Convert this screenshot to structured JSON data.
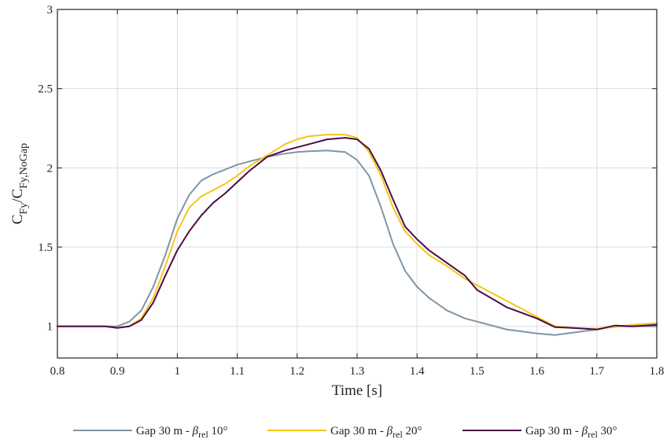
{
  "chart_data": {
    "type": "line",
    "xlabel": "Time [s]",
    "ylabel": {
      "main": "C",
      "sub1": "Fy",
      "sep": "/C",
      "sub2": "Fy,NoGap"
    },
    "xlim": [
      0.8,
      1.8
    ],
    "ylim": [
      0.8,
      3
    ],
    "xticks": [
      "0.8",
      "0.9",
      "1",
      "1.1",
      "1.2",
      "1.3",
      "1.4",
      "1.5",
      "1.6",
      "1.7",
      "1.8"
    ],
    "yticks": [
      "1",
      "1.5",
      "2",
      "2.5",
      "3"
    ],
    "grid": true,
    "legend_position": "bottom",
    "series": [
      {
        "legend": {
          "prefix": "Gap 30 m - ",
          "symbol": "β",
          "sub": "rel",
          "suffix": " 10°"
        },
        "color": "#7f95a6",
        "x": [
          0.8,
          0.84,
          0.88,
          0.9,
          0.92,
          0.94,
          0.96,
          0.98,
          1.0,
          1.02,
          1.04,
          1.06,
          1.08,
          1.1,
          1.12,
          1.15,
          1.18,
          1.2,
          1.22,
          1.25,
          1.28,
          1.3,
          1.32,
          1.34,
          1.36,
          1.38,
          1.4,
          1.42,
          1.45,
          1.48,
          1.5,
          1.55,
          1.6,
          1.63,
          1.66,
          1.7,
          1.73,
          1.76,
          1.8
        ],
        "y": [
          1.0,
          1.0,
          1.0,
          1.0,
          1.03,
          1.1,
          1.25,
          1.45,
          1.68,
          1.83,
          1.92,
          1.96,
          1.99,
          2.02,
          2.04,
          2.07,
          2.09,
          2.1,
          2.105,
          2.11,
          2.1,
          2.05,
          1.95,
          1.75,
          1.52,
          1.35,
          1.25,
          1.18,
          1.1,
          1.05,
          1.03,
          0.98,
          0.955,
          0.945,
          0.96,
          0.98,
          1.0,
          1.0,
          1.0
        ]
      },
      {
        "legend": {
          "prefix": "Gap 30 m - ",
          "symbol": "β",
          "sub": "rel",
          "suffix": " 20°"
        },
        "color": "#f5c518",
        "x": [
          0.8,
          0.84,
          0.88,
          0.9,
          0.92,
          0.94,
          0.96,
          0.98,
          1.0,
          1.02,
          1.04,
          1.06,
          1.08,
          1.1,
          1.12,
          1.15,
          1.18,
          1.2,
          1.22,
          1.25,
          1.28,
          1.3,
          1.32,
          1.34,
          1.36,
          1.38,
          1.4,
          1.42,
          1.45,
          1.48,
          1.5,
          1.55,
          1.6,
          1.63,
          1.66,
          1.7,
          1.73,
          1.76,
          1.8
        ],
        "y": [
          1.0,
          1.0,
          1.0,
          0.99,
          1.0,
          1.05,
          1.18,
          1.38,
          1.6,
          1.75,
          1.82,
          1.86,
          1.9,
          1.95,
          2.01,
          2.08,
          2.15,
          2.18,
          2.2,
          2.21,
          2.21,
          2.19,
          2.1,
          1.95,
          1.75,
          1.6,
          1.52,
          1.45,
          1.38,
          1.3,
          1.26,
          1.16,
          1.06,
          1.0,
          0.99,
          0.985,
          0.995,
          1.01,
          1.02
        ]
      },
      {
        "legend": {
          "prefix": "Gap 30 m - ",
          "symbol": "β",
          "sub": "rel",
          "suffix": " 30°"
        },
        "color": "#4b0d48",
        "x": [
          0.8,
          0.84,
          0.88,
          0.9,
          0.92,
          0.94,
          0.96,
          0.98,
          1.0,
          1.02,
          1.04,
          1.06,
          1.08,
          1.1,
          1.12,
          1.15,
          1.18,
          1.2,
          1.22,
          1.25,
          1.28,
          1.3,
          1.32,
          1.34,
          1.36,
          1.38,
          1.4,
          1.42,
          1.45,
          1.48,
          1.5,
          1.55,
          1.6,
          1.63,
          1.66,
          1.7,
          1.73,
          1.76,
          1.8
        ],
        "y": [
          1.0,
          1.0,
          1.0,
          0.99,
          1.0,
          1.04,
          1.15,
          1.32,
          1.48,
          1.6,
          1.7,
          1.78,
          1.84,
          1.91,
          1.98,
          2.07,
          2.11,
          2.13,
          2.15,
          2.18,
          2.19,
          2.18,
          2.12,
          1.98,
          1.8,
          1.63,
          1.55,
          1.48,
          1.4,
          1.32,
          1.23,
          1.12,
          1.05,
          0.995,
          0.99,
          0.98,
          1.005,
          1.0,
          1.01
        ]
      }
    ]
  }
}
